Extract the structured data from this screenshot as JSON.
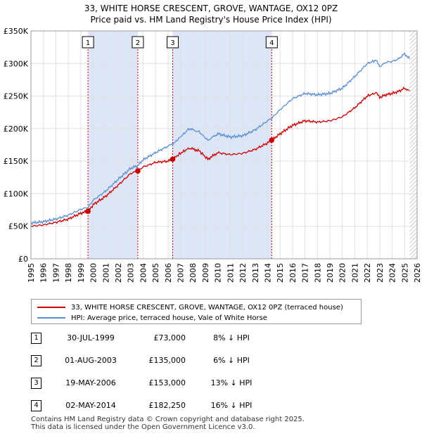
{
  "title_line1": "33, WHITE HORSE CRESCENT, GROVE, WANTAGE, OX12 0PZ",
  "title_line2": "Price paid vs. HM Land Registry's House Price Index (HPI)",
  "legend": {
    "property": "33, WHITE HORSE CRESCENT, GROVE, WANTAGE, OX12 0PZ (terraced house)",
    "hpi": "HPI: Average price, terraced house, Vale of White Horse"
  },
  "sales": [
    {
      "num": "1",
      "date": "30-JUL-1999",
      "price": "£73,000",
      "pct": "8% ↓ HPI"
    },
    {
      "num": "2",
      "date": "01-AUG-2003",
      "price": "£135,000",
      "pct": "6% ↓ HPI"
    },
    {
      "num": "3",
      "date": "19-MAY-2006",
      "price": "£153,000",
      "pct": "13% ↓ HPI"
    },
    {
      "num": "4",
      "date": "02-MAY-2014",
      "price": "£182,250",
      "pct": "16% ↓ HPI"
    }
  ],
  "footer_line1": "Contains HM Land Registry data © Crown copyright and database right 2025.",
  "footer_line2": "This data is licensed under the Open Government Licence v3.0.",
  "colors": {
    "property": "#cc0000",
    "hpi": "#5b8fd1",
    "shade": "#dce6f7",
    "grid": "#e0e0e0"
  },
  "chart_data": {
    "type": "line",
    "title": "33, WHITE HORSE CRESCENT, GROVE, WANTAGE, OX12 0PZ — Price paid vs. HM Land Registry's House Price Index (HPI)",
    "xlim": [
      1995,
      2026
    ],
    "ylim": [
      0,
      350000
    ],
    "xticks": [
      1995,
      1996,
      1997,
      1998,
      1999,
      2000,
      2001,
      2002,
      2003,
      2004,
      2005,
      2006,
      2007,
      2008,
      2009,
      2010,
      2011,
      2012,
      2013,
      2014,
      2015,
      2016,
      2017,
      2018,
      2019,
      2020,
      2021,
      2022,
      2023,
      2024,
      2025,
      2026
    ],
    "yticks": [
      0,
      50000,
      100000,
      150000,
      200000,
      250000,
      300000,
      350000
    ],
    "ytick_labels": [
      "£0",
      "£50K",
      "£100K",
      "£150K",
      "£200K",
      "£250K",
      "£300K",
      "£350K"
    ],
    "shaded_ranges": [
      [
        1999.58,
        2003.58
      ],
      [
        2006.38,
        2014.33
      ]
    ],
    "sale_markers": [
      {
        "label": "1",
        "x": 1999.58,
        "y": 73000
      },
      {
        "label": "2",
        "x": 2003.58,
        "y": 135000
      },
      {
        "label": "3",
        "x": 2006.38,
        "y": 153000
      },
      {
        "label": "4",
        "x": 2014.33,
        "y": 182250
      }
    ],
    "series": [
      {
        "name": "HPI: Average price, terraced house, Vale of White Horse",
        "x": [
          1995,
          1996,
          1997,
          1998,
          1999,
          1999.58,
          2000,
          2001,
          2002,
          2003,
          2003.58,
          2004,
          2005,
          2006,
          2006.38,
          2007,
          2007.7,
          2008.5,
          2009.2,
          2010,
          2011,
          2012,
          2013,
          2014,
          2014.33,
          2015,
          2016,
          2017,
          2018,
          2019,
          2020,
          2021,
          2022,
          2022.7,
          2023,
          2023.5,
          2024,
          2024.5,
          2025,
          2025.4
        ],
        "values": [
          55000,
          57000,
          61000,
          67000,
          76000,
          79000,
          90000,
          104000,
          122000,
          139000,
          143000,
          152000,
          163000,
          173000,
          176000,
          187000,
          200000,
          195000,
          182000,
          192000,
          187000,
          189000,
          198000,
          212000,
          216000,
          229000,
          246000,
          254000,
          252000,
          254000,
          262000,
          280000,
          300000,
          305000,
          295000,
          302000,
          303000,
          307000,
          315000,
          307000
        ]
      },
      {
        "name": "33, WHITE HORSE CRESCENT, GROVE, WANTAGE, OX12 0PZ (terraced house)",
        "x": [
          1995,
          1996,
          1997,
          1998,
          1999,
          1999.58,
          2000,
          2001,
          2002,
          2003,
          2003.58,
          2004,
          2005,
          2006,
          2006.38,
          2007,
          2007.7,
          2008.5,
          2009.2,
          2010,
          2011,
          2012,
          2013,
          2014,
          2014.33,
          2015,
          2016,
          2017,
          2018,
          2019,
          2020,
          2021,
          2022,
          2022.7,
          2023,
          2023.5,
          2024,
          2024.5,
          2025,
          2025.4
        ],
        "values": [
          50000,
          52000,
          56000,
          61000,
          70000,
          73000,
          83000,
          96000,
          113000,
          131000,
          135000,
          141000,
          148000,
          150000,
          153000,
          162000,
          170000,
          166000,
          153000,
          163000,
          160000,
          162000,
          168000,
          178000,
          182250,
          192000,
          205000,
          212000,
          210000,
          212000,
          218000,
          232000,
          250000,
          255000,
          248000,
          252000,
          254000,
          257000,
          262000,
          258000
        ]
      }
    ]
  }
}
